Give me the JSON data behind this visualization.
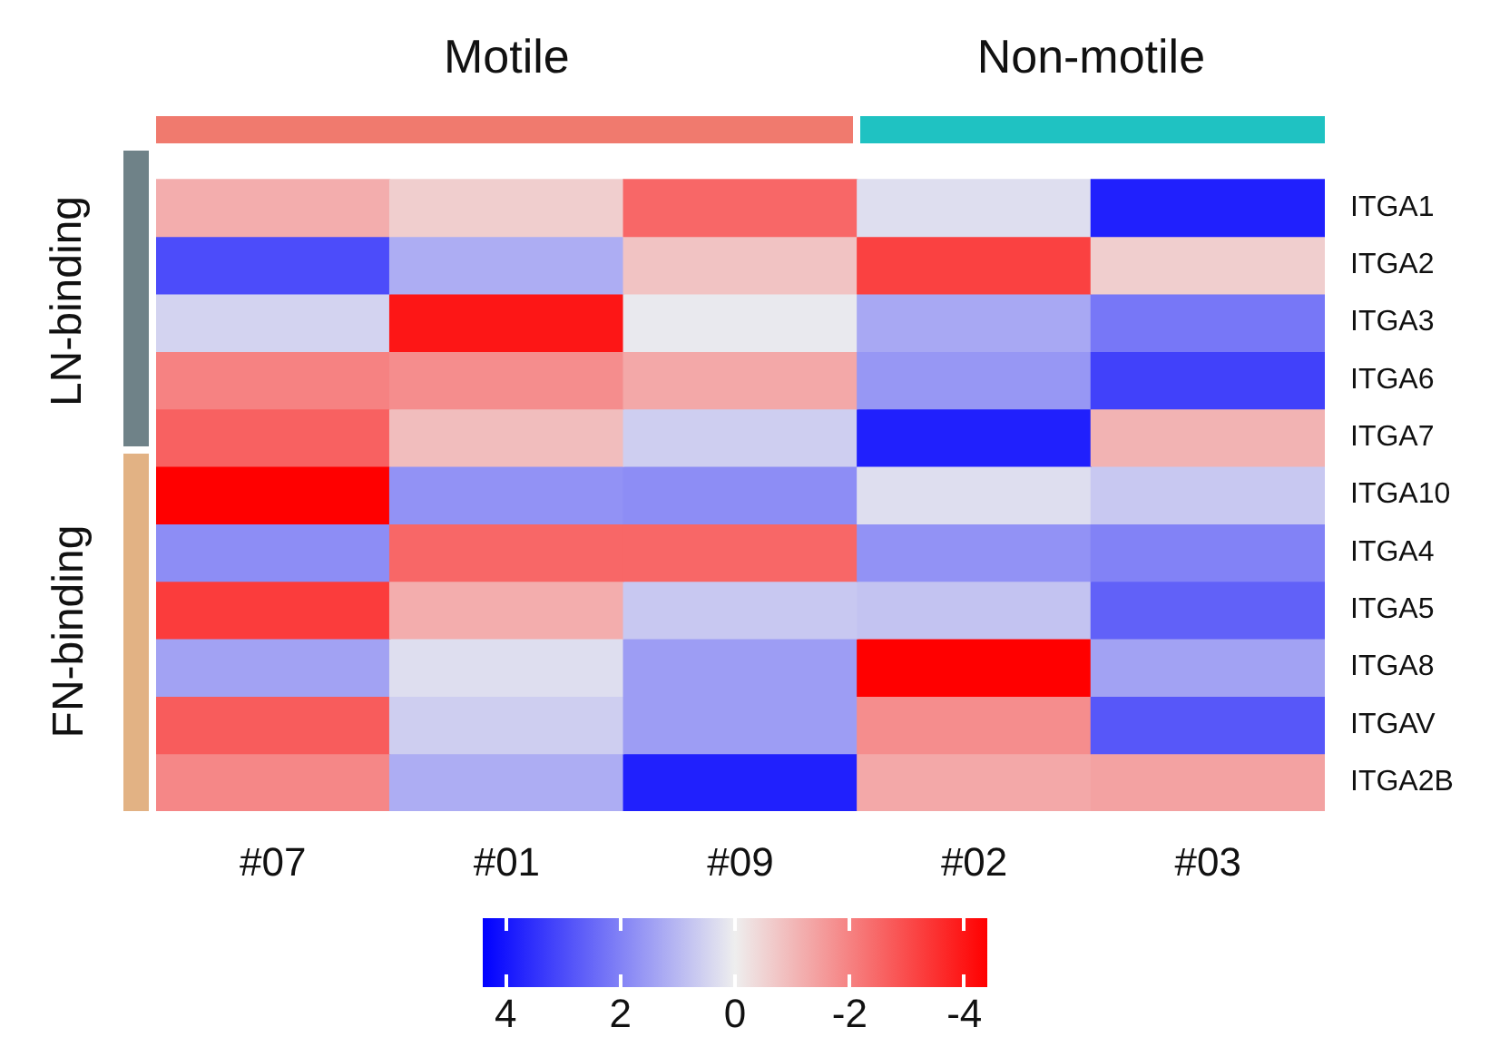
{
  "chart_data": {
    "type": "heatmap",
    "annotations": [
      "Motile",
      "Non-motile",
      "LN-binding",
      "FN-binding"
    ],
    "categories": [
      "#07",
      "#01",
      "#09",
      "#02",
      "#03"
    ],
    "y_categories": [
      "ITGA1",
      "ITGA2",
      "ITGA3",
      "ITGA6",
      "ITGA7",
      "ITGA10",
      "ITGA4",
      "ITGA5",
      "ITGA8",
      "ITGAV",
      "ITGA2B"
    ],
    "cells": [
      [
        -1.2,
        -0.6,
        -2.5,
        0.3,
        3.8
      ],
      [
        3.0,
        1.2,
        -0.8,
        -3.2,
        -0.6
      ],
      [
        0.5,
        -4.0,
        0.1,
        1.3,
        2.2
      ],
      [
        -2.0,
        -1.8,
        -1.3,
        1.6,
        3.2
      ],
      [
        -2.6,
        -0.9,
        0.6,
        3.8,
        -1.1
      ],
      [
        -4.4,
        1.7,
        1.8,
        0.3,
        0.7
      ],
      [
        1.8,
        -2.5,
        -2.5,
        1.7,
        2.0
      ],
      [
        -3.3,
        -1.2,
        0.7,
        0.8,
        2.6
      ],
      [
        1.4,
        0.3,
        1.5,
        -4.4,
        1.4
      ],
      [
        -2.7,
        0.6,
        1.5,
        -1.8,
        2.8
      ],
      [
        -1.9,
        1.2,
        3.8,
        -1.3,
        -1.4
      ]
    ],
    "clim": [
      4.4,
      -4.4
    ],
    "cticks": [
      4,
      2,
      0,
      -2,
      -4
    ]
  }
}
